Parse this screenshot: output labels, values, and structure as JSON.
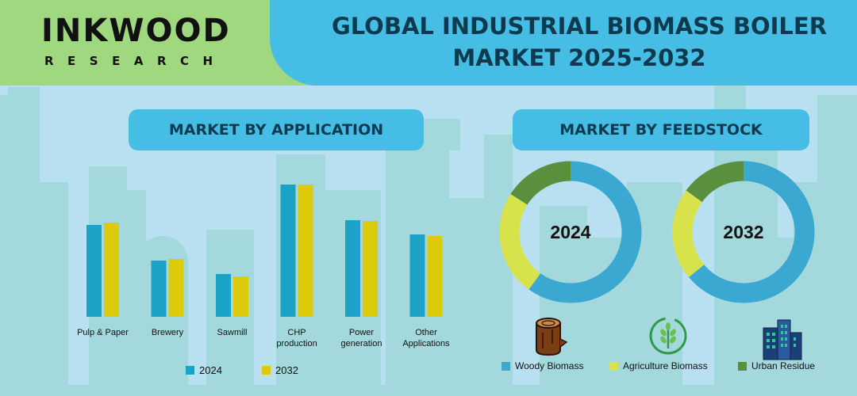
{
  "header": {
    "logo_main": "INKWOOD",
    "logo_sub": "RESEARCH",
    "title_line_1": "GLOBAL INDUSTRIAL BIOMASS BOILER",
    "title_line_2": "MARKET 2025-2032"
  },
  "sections": {
    "application_title": "MARKET BY APPLICATION",
    "feedstock_title": "MARKET BY FEEDSTOCK"
  },
  "colors": {
    "series_2024": "#1aa3c6",
    "series_2032": "#dccb0b",
    "woody": "#3aa8d0",
    "agriculture": "#d8e24a",
    "urban": "#5a8f3e"
  },
  "chart_data": [
    {
      "type": "bar",
      "categories": [
        [
          "Pulp & Paper"
        ],
        [
          "Brewery"
        ],
        [
          "Sawmill"
        ],
        [
          "CHP",
          "production"
        ],
        [
          "Power",
          "generation"
        ],
        [
          "Other",
          "Applications"
        ]
      ],
      "series": [
        {
          "name": "2024",
          "values": [
            116,
            71,
            54,
            167,
            122,
            104
          ]
        },
        {
          "name": "2032",
          "values": [
            119,
            73,
            51,
            167,
            121,
            102
          ]
        }
      ],
      "title": "",
      "xlabel": "",
      "ylabel": "",
      "grid": false,
      "legend": "bottom"
    },
    {
      "type": "pie",
      "subtype": "donut",
      "center_label": "2024",
      "labels": [
        "Woody Biomass",
        "Agriculture Biomass",
        "Urban Residue"
      ],
      "values": [
        60,
        24,
        16
      ]
    },
    {
      "type": "pie",
      "subtype": "donut",
      "center_label": "2032",
      "labels": [
        "Woody Biomass",
        "Agriculture Biomass",
        "Urban Residue"
      ],
      "values": [
        64,
        21,
        15
      ]
    }
  ],
  "icons": {
    "woody": "log-icon",
    "agriculture": "leaf-badge-icon",
    "urban": "buildings-icon"
  }
}
